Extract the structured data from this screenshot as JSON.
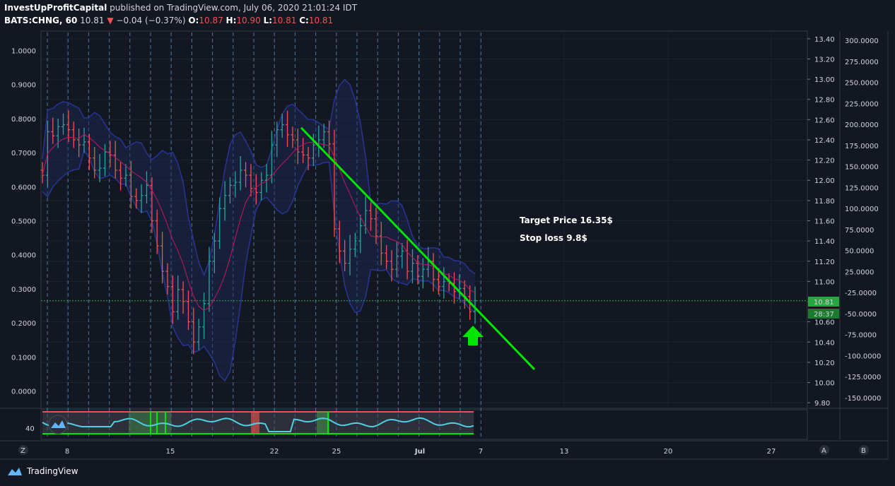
{
  "header": {
    "author": "InvestUpProfitCapital",
    "published": "published on TradingView.com, July 06, 2020 21:01:24 IDT",
    "symbol": "BATS:CHNG, 60",
    "last": "10.81",
    "change": "−0.04 (−0.37%)",
    "o_label": "O:",
    "o": "10.87",
    "h_label": "H:",
    "h": "10.90",
    "l_label": "L:",
    "l": "10.81",
    "c_label": "C:",
    "c": "10.81"
  },
  "chart_data": {
    "type": "bar",
    "title": "",
    "xlabel": "",
    "ylabel": "",
    "x_ticks": [
      "8",
      "15",
      "22",
      "25",
      "Jul",
      "7",
      "13",
      "20",
      "27"
    ],
    "price_axis": {
      "ticks": [
        "13.40",
        "13.20",
        "13.00",
        "12.80",
        "12.60",
        "12.40",
        "12.20",
        "12.00",
        "11.80",
        "11.60",
        "11.40",
        "11.20",
        "11.00",
        "10.80",
        "10.60",
        "10.40",
        "10.20",
        "10.00",
        "9.80"
      ],
      "ylim": [
        9.78,
        13.42
      ]
    },
    "left_axis": {
      "ticks": [
        "1.0000",
        "0.9000",
        "0.8000",
        "0.7000",
        "0.6000",
        "0.5000",
        "0.4000",
        "0.3000",
        "0.2000",
        "0.1000",
        "0.0000"
      ],
      "ylim": [
        -0.04,
        1.04
      ]
    },
    "oscillator_axis": {
      "ticks": [
        "300.0000",
        "275.0000",
        "250.0000",
        "225.0000",
        "200.0000",
        "175.0000",
        "150.0000",
        "125.0000",
        "100.0000",
        "75.0000",
        "50.0000",
        "25.0000",
        "-25.0000",
        "-50.0000",
        "-75.0000",
        "-100.0000",
        "-125.0000",
        "-150.0000"
      ]
    },
    "price_series": [
      12.05,
      12.48,
      12.44,
      12.53,
      12.55,
      12.5,
      12.4,
      12.35,
      12.38,
      12.22,
      12.1,
      12.12,
      12.28,
      12.25,
      12.1,
      12.02,
      12.05,
      11.84,
      11.8,
      11.85,
      11.95,
      11.6,
      11.35,
      11.1,
      10.95,
      10.7,
      10.92,
      10.8,
      10.6,
      10.4,
      10.55,
      10.78,
      11.2,
      11.4,
      11.72,
      11.85,
      11.95,
      11.98,
      12.1,
      12.05,
      11.92,
      11.88,
      12.0,
      12.05,
      12.35,
      12.5,
      12.55,
      12.45,
      12.4,
      12.28,
      12.25,
      12.22,
      12.35,
      12.4,
      12.48,
      12.36,
      11.52,
      11.3,
      11.18,
      11.32,
      11.4,
      11.55,
      11.7,
      11.62,
      11.45,
      11.28,
      11.2,
      11.12,
      11.25,
      11.3,
      11.1,
      11.18,
      11.05,
      11.12,
      11.2,
      11.02,
      10.95,
      11.0,
      10.98,
      10.9,
      10.93,
      10.85,
      10.7,
      10.81
    ],
    "current_price": "10.81",
    "countdown": "28:37",
    "trendline": {
      "from": [
        0.0,
        12.52
      ],
      "to": [
        1.0,
        10.13
      ]
    },
    "oscillator_label": "40",
    "annotations": [
      "Target Price 16.35$",
      "Stop loss 9.8$"
    ],
    "colors": {
      "up": "#26a69a",
      "down": "#ef5350",
      "trend": "#00e600",
      "ma": "#c2185b",
      "band": "#283593",
      "osc": "#4dd0e1",
      "price_label": "#26a641"
    }
  },
  "bottom": {
    "left_btn": "Z",
    "btn_a": "A",
    "btn_b": "B"
  },
  "brand": {
    "name": "TradingView"
  }
}
